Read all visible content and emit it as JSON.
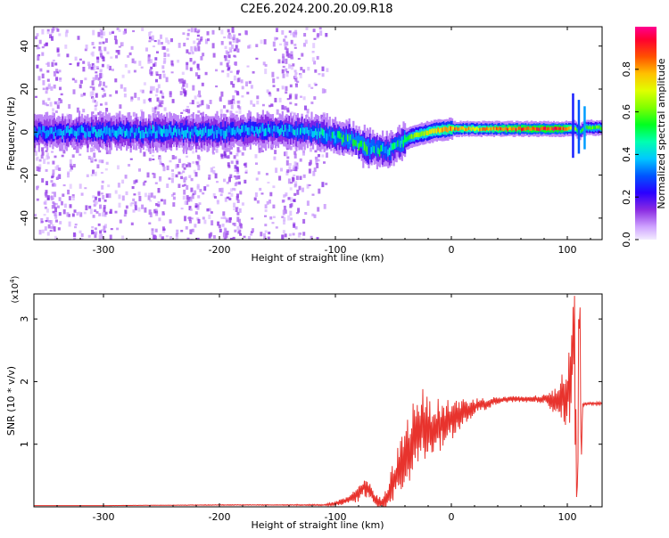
{
  "title": "C2E6.2024.200.20.09.R18",
  "colors": {
    "snr_line": "#e8332d",
    "axis": "#000000",
    "background": "#ffffff"
  },
  "chart_data": [
    {
      "type": "heatmap",
      "name": "spectrogram",
      "xlabel": "Height of straight line (km)",
      "ylabel": "Frequency (Hz)",
      "xlim": [
        -360,
        130
      ],
      "ylim": [
        -50,
        49
      ],
      "xticks": [
        -300,
        -200,
        -100,
        0,
        100
      ],
      "yticks": [
        -40,
        -20,
        0,
        20,
        40
      ],
      "colorbar": {
        "label": "Normalized spectral amplitude",
        "range": [
          0,
          1
        ],
        "ticks": [
          0.0,
          0.2,
          0.4,
          0.6,
          0.8
        ],
        "tick_labels": [
          "0.0",
          "0.2",
          "0.4",
          "0.6",
          "0.8"
        ]
      },
      "ridge": {
        "x": [
          -360,
          -300,
          -250,
          -200,
          -150,
          -120,
          -100,
          -85,
          -75,
          -65,
          -55,
          -45,
          -35,
          -20,
          -10,
          0,
          20,
          50,
          80,
          95,
          105,
          110,
          115,
          130
        ],
        "frequency": [
          0,
          0,
          0,
          0,
          1,
          0,
          -2,
          -4,
          -7,
          -8,
          -9,
          -5,
          -2,
          0,
          1,
          1.5,
          1.5,
          1.5,
          1.5,
          1.5,
          2,
          0,
          2,
          2
        ],
        "peak_amplitude": [
          0.35,
          0.4,
          0.4,
          0.4,
          0.4,
          0.45,
          0.5,
          0.55,
          0.55,
          0.5,
          0.45,
          0.5,
          0.6,
          0.7,
          0.75,
          0.8,
          0.75,
          0.85,
          0.9,
          0.9,
          0.7,
          0.5,
          0.6,
          0.6
        ]
      },
      "spike": {
        "x": 110,
        "frequency_range": [
          -12,
          18
        ]
      },
      "noise_region_x": [
        -360,
        -120
      ]
    },
    {
      "type": "line",
      "name": "snr",
      "xlabel": "Height of straight line (km)",
      "ylabel": "SNR (10 * v/v)",
      "exponent_label": "(x10",
      "exponent_power": "4",
      "exponent_close": ")",
      "xlim": [
        -360,
        130
      ],
      "ylim": [
        0,
        3.4
      ],
      "xticks": [
        -300,
        -200,
        -100,
        0,
        100
      ],
      "yticks": [
        1,
        2,
        3
      ],
      "series": [
        {
          "name": "SNR",
          "x": [
            -360,
            -300,
            -200,
            -150,
            -110,
            -100,
            -90,
            -80,
            -75,
            -70,
            -65,
            -60,
            -55,
            -50,
            -45,
            -40,
            -35,
            -30,
            -25,
            -20,
            -15,
            -10,
            -5,
            0,
            5,
            10,
            20,
            30,
            40,
            50,
            60,
            70,
            80,
            85,
            90,
            95,
            100,
            103,
            106,
            108,
            109,
            110,
            111,
            112,
            113,
            115,
            120,
            130
          ],
          "y": [
            0.02,
            0.02,
            0.03,
            0.03,
            0.03,
            0.05,
            0.1,
            0.2,
            0.35,
            0.25,
            0.1,
            0.05,
            0.15,
            0.4,
            0.6,
            0.8,
            1.0,
            1.2,
            1.3,
            1.2,
            1.25,
            1.3,
            1.35,
            1.4,
            1.45,
            1.5,
            1.6,
            1.65,
            1.7,
            1.72,
            1.72,
            1.72,
            1.72,
            1.7,
            1.72,
            1.75,
            1.8,
            2.2,
            2.6,
            0.3,
            0.2,
            3.35,
            2.9,
            0.5,
            1.6,
            1.65,
            1.65,
            1.65
          ],
          "noise": [
            0.0,
            0.0,
            0.005,
            0.005,
            0.01,
            0.03,
            0.05,
            0.1,
            0.15,
            0.12,
            0.08,
            0.08,
            0.15,
            0.3,
            0.35,
            0.45,
            0.5,
            0.55,
            0.5,
            0.45,
            0.4,
            0.35,
            0.3,
            0.28,
            0.25,
            0.2,
            0.12,
            0.08,
            0.05,
            0.04,
            0.04,
            0.05,
            0.06,
            0.12,
            0.2,
            0.3,
            0.5,
            0.7,
            0.9,
            0.3,
            0.2,
            0.4,
            0.6,
            0.4,
            0.05,
            0.02,
            0.02,
            0.02
          ]
        }
      ]
    }
  ]
}
